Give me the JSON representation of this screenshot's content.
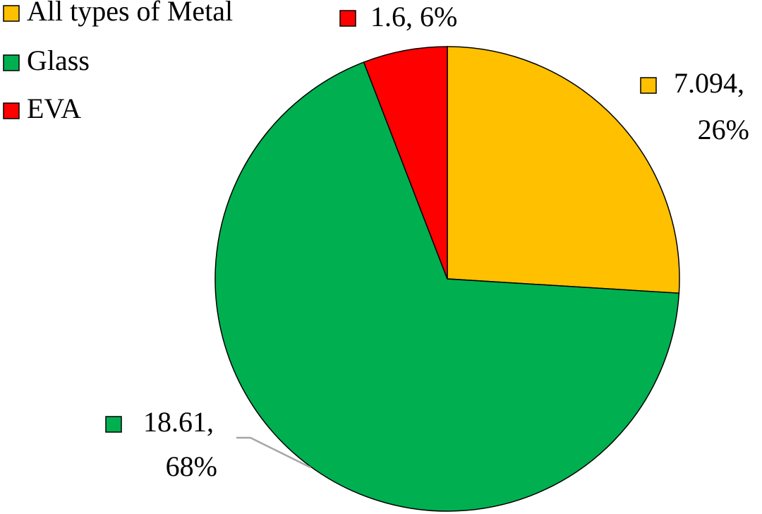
{
  "chart_data": {
    "type": "pie",
    "categories": [
      "All types of Metal",
      "Glass",
      "EVA"
    ],
    "values": [
      7.094,
      18.61,
      1.6
    ],
    "value_labels": [
      [
        "7.094,",
        "26%"
      ],
      [
        "18.61,",
        "68%"
      ],
      [
        "1.6, 6%"
      ]
    ],
    "colors": [
      "#FFC000",
      "#00B050",
      "#FF0000"
    ]
  }
}
